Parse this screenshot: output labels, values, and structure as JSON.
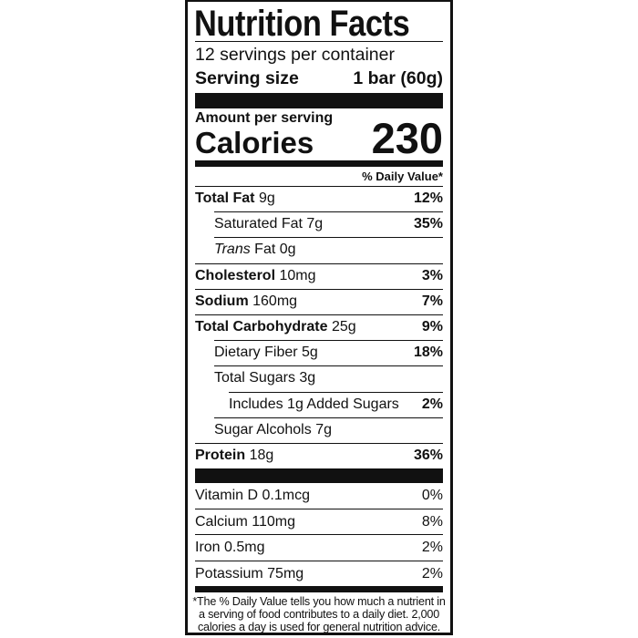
{
  "title": "Nutrition Facts",
  "servings_per_container": "12 servings per container",
  "serving_size": {
    "label": "Serving size",
    "value": "1 bar (60g)"
  },
  "amount_per_serving": "Amount per serving",
  "calories": {
    "label": "Calories",
    "value": "230"
  },
  "daily_value_header": "% Daily Value*",
  "nutrients": [
    {
      "name": "Total Fat",
      "amount": "9g",
      "dv": "12%"
    },
    {
      "name": "Saturated Fat",
      "amount": "7g",
      "dv": "35%"
    },
    {
      "name_italic": "Trans",
      "name": "Fat",
      "amount": "0g",
      "dv": ""
    },
    {
      "name": "Cholesterol",
      "amount": "10mg",
      "dv": "3%"
    },
    {
      "name": "Sodium",
      "amount": "160mg",
      "dv": "7%"
    },
    {
      "name": "Total Carbohydrate",
      "amount": "25g",
      "dv": "9%"
    },
    {
      "name": "Dietary Fiber",
      "amount": "5g",
      "dv": "18%"
    },
    {
      "name": "Total Sugars",
      "amount": "3g",
      "dv": ""
    },
    {
      "name": "Includes 1g Added Sugars",
      "amount": "",
      "dv": "2%"
    },
    {
      "name": "Sugar Alcohols",
      "amount": "7g",
      "dv": ""
    },
    {
      "name": "Protein",
      "amount": "18g",
      "dv": "36%"
    }
  ],
  "vitamins": [
    {
      "name": "Vitamin D 0.1mcg",
      "dv": "0%"
    },
    {
      "name": "Calcium 110mg",
      "dv": "8%"
    },
    {
      "name": "Iron 0.5mg",
      "dv": "2%"
    },
    {
      "name": "Potassium 75mg",
      "dv": "2%"
    }
  ],
  "footnote": "*The % Daily Value tells you how much a nutrient in a serving of food contributes to a daily diet. 2,000 calories a day is used for general nutrition advice."
}
